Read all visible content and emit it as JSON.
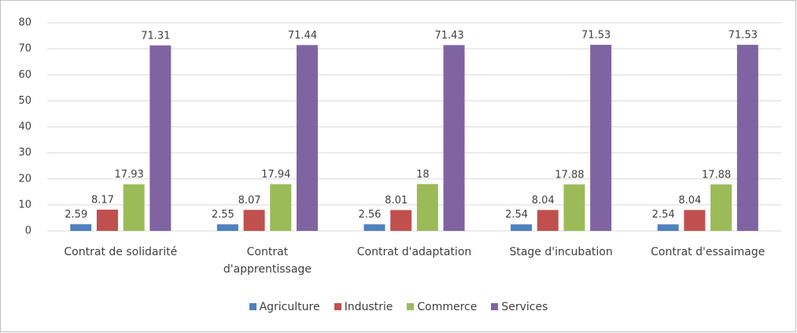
{
  "chart_data": {
    "type": "bar",
    "categories": [
      "Contrat de solidarité",
      "Contrat d'apprentissage",
      "Contrat d'adaptation",
      "Stage d'incubation",
      "Contrat d'essaimage"
    ],
    "series": [
      {
        "name": "Agriculture",
        "color": "#4f81bd",
        "values": [
          2.59,
          2.55,
          2.56,
          2.54,
          2.54
        ]
      },
      {
        "name": "Industrie",
        "color": "#c0504d",
        "values": [
          8.17,
          8.07,
          8.01,
          8.04,
          8.04
        ]
      },
      {
        "name": "Commerce",
        "color": "#9bbb59",
        "values": [
          17.93,
          17.94,
          18,
          17.88,
          17.88
        ]
      },
      {
        "name": "Services",
        "color": "#8064a2",
        "values": [
          71.31,
          71.44,
          71.43,
          71.53,
          71.53
        ]
      }
    ],
    "ylim": [
      0,
      80
    ],
    "yticks": [
      0,
      10,
      20,
      30,
      40,
      50,
      60,
      70,
      80
    ],
    "grid": true,
    "legend": "bottom"
  }
}
